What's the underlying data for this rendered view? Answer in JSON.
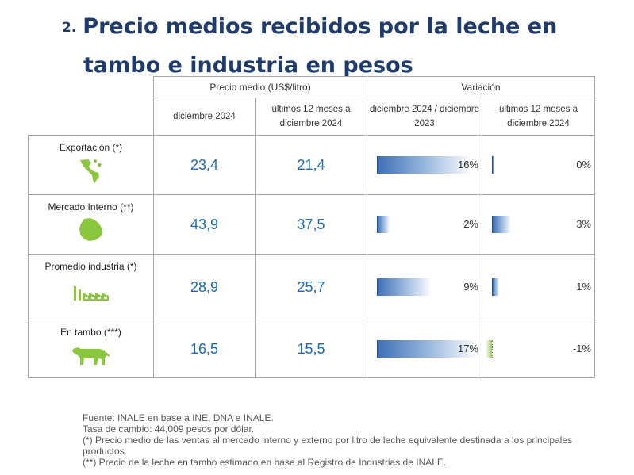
{
  "title": {
    "number": "2.",
    "line1": "Precio medios recibidos por la leche en",
    "line2": "tambo e industria en pesos"
  },
  "table": {
    "group_price": "Precio medio (US$/litro)",
    "group_var": "Variación",
    "col_dec": "diciembre 2024",
    "col_12m": "últimos 12 meses a diciembre 2024",
    "col_var_dec": "diciembre 2024 / diciembre 2023",
    "col_var_12m": "últimos 12 meses a diciembre 2024",
    "rows": [
      {
        "label": "Exportación (*)",
        "icon": "americas-map-icon",
        "dec": "23,4",
        "m12": "21,4",
        "var_dec": "16%",
        "var_dec_value": 16,
        "var_12m": "0%",
        "var_12m_value": 0
      },
      {
        "label": "Mercado Interno (**)",
        "icon": "uruguay-map-icon",
        "dec": "43,9",
        "m12": "37,5",
        "var_dec": "2%",
        "var_dec_value": 2,
        "var_12m": "3%",
        "var_12m_value": 3
      },
      {
        "label": "Promedio industria (*)",
        "icon": "factory-icon",
        "dec": "28,9",
        "m12": "25,7",
        "var_dec": "9%",
        "var_dec_value": 9,
        "var_12m": "1%",
        "var_12m_value": 1
      },
      {
        "label": "En tambo (***)",
        "icon": "cow-icon",
        "dec": "16,5",
        "m12": "15,5",
        "var_dec": "17%",
        "var_dec_value": 17,
        "var_12m": "-1%",
        "var_12m_value": -1
      }
    ]
  },
  "footnotes": {
    "source": "Fuente: INALE en base a INE, DNA e INALE.",
    "rate": "Tasa de cambio: 44,009 pesos por dólar.",
    "note1": "(*) Precio medio de las ventas al mercado interno y externo por litro de leche equivalente destinada a los principales productos.",
    "note2": "(**) Precio de la leche en tambo estimado en base al Registro de Industrias de INALE."
  },
  "colors": {
    "title": "#1f3b6e",
    "value": "#1f6ab0",
    "bar": "#3f6fb6",
    "icon": "#8cc63f"
  }
}
